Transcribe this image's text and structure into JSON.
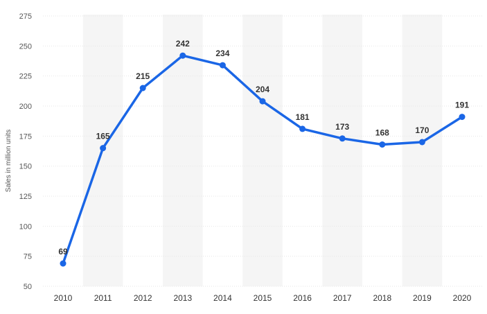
{
  "chart_data": {
    "type": "line",
    "title": "",
    "xlabel": "",
    "ylabel": "Sales in million units",
    "categories": [
      "2010",
      "2011",
      "2012",
      "2013",
      "2014",
      "2015",
      "2016",
      "2017",
      "2018",
      "2019",
      "2020"
    ],
    "values": [
      69,
      165,
      215,
      242,
      234,
      204,
      181,
      173,
      168,
      170,
      191
    ],
    "data_labels": [
      "69",
      "165",
      "215",
      "242",
      "234",
      "204",
      "181",
      "173",
      "168",
      "170",
      "191"
    ],
    "ylim": [
      50,
      275
    ],
    "yticks": [
      50,
      75,
      100,
      125,
      150,
      175,
      200,
      225,
      250,
      275
    ],
    "ytick_labels": [
      "50",
      "75",
      "100",
      "125",
      "150",
      "175",
      "200",
      "225",
      "250",
      "275"
    ],
    "grid": true,
    "line_color": "#1a66e6",
    "band_color": "#f5f5f5",
    "grid_color": "#e6e6e6"
  }
}
